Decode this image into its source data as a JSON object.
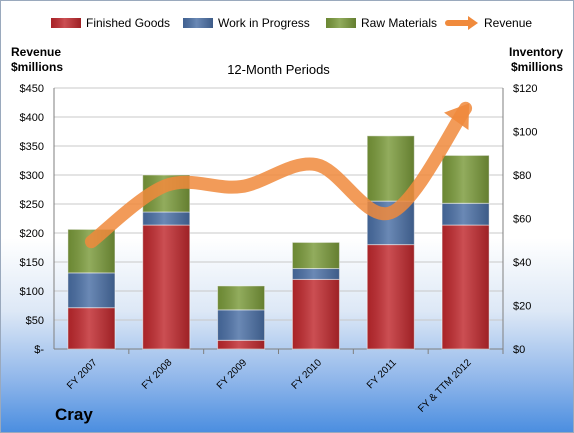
{
  "company": "Cray",
  "chart_data": {
    "type": "bar",
    "stacked": true,
    "title": "12-Month Periods",
    "ylabel_left": [
      "Revenue",
      "$millions"
    ],
    "ylabel_right": [
      "Inventory",
      "$millions"
    ],
    "categories": [
      "FY 2007",
      "FY 2008",
      "FY 2009",
      "FY 2010",
      "FY 2011",
      "FY & TTM 2012"
    ],
    "series": [
      {
        "name": "Finished Goods",
        "axis": "right",
        "color": "#c0282d",
        "values": [
          19,
          57,
          4,
          32,
          48,
          57
        ]
      },
      {
        "name": "Work in Progress",
        "axis": "right",
        "color": "#4a6fa5",
        "values": [
          16,
          6,
          14,
          5,
          20,
          10
        ]
      },
      {
        "name": "Raw Materials",
        "axis": "right",
        "color": "#7a9a3a",
        "values": [
          20,
          17,
          11,
          12,
          30,
          22
        ]
      },
      {
        "name": "Revenue",
        "type": "line",
        "axis": "left",
        "color": "#f08a3c",
        "values": [
          185,
          282,
          280,
          318,
          235,
          415
        ]
      }
    ],
    "ylim_left": [
      0,
      450
    ],
    "yticks_left": [
      "$-",
      "$50",
      "$100",
      "$150",
      "$200",
      "$250",
      "$300",
      "$350",
      "$400",
      "$450"
    ],
    "ylim_right": [
      0,
      120
    ],
    "yticks_right": [
      "$0",
      "$20",
      "$40",
      "$60",
      "$80",
      "$100",
      "$120"
    ],
    "grid": true,
    "legend": "top"
  }
}
